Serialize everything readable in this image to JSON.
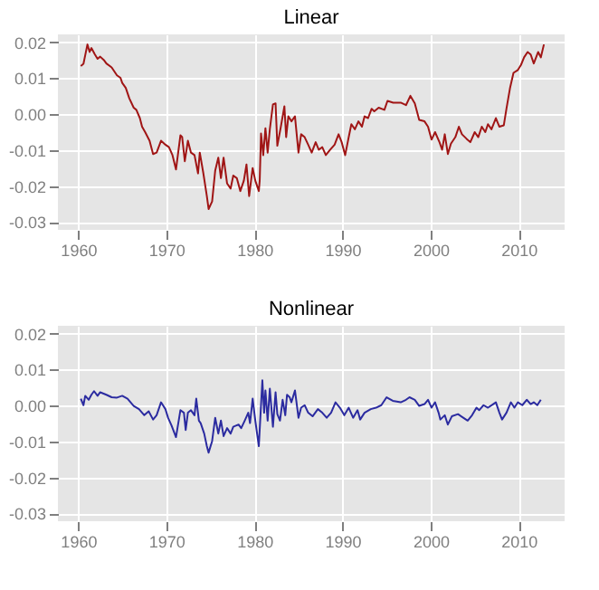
{
  "chart_data": [
    {
      "type": "line",
      "title": "Linear",
      "grid": true,
      "xlim": [
        1957.7,
        2015.2
      ],
      "xticks": [
        1960,
        1970,
        1980,
        1990,
        2000,
        2010
      ],
      "ylim": [
        -0.0322,
        0.0222
      ],
      "yticks": [
        {
          "value": -0.03,
          "label": "-0.03"
        },
        {
          "value": -0.02,
          "label": "-0.02"
        },
        {
          "value": -0.01,
          "label": "-0.01"
        },
        {
          "value": 0,
          "label": "0.00"
        },
        {
          "value": 0.01,
          "label": "0.01"
        },
        {
          "value": 0.02,
          "label": "0.02"
        }
      ],
      "series": [
        {
          "color": "#a01515",
          "x": [
            1960.3,
            1960.6,
            1961.05,
            1961.3,
            1961.5,
            1961.9,
            1962.2,
            1962.5,
            1962.9,
            1963.2,
            1963.8,
            1964.4,
            1964.8,
            1965,
            1965.4,
            1965.8,
            1966.3,
            1966.6,
            1967,
            1967.25,
            1967.6,
            1968.1,
            1968.5,
            1968.9,
            1969.4,
            1969.9,
            1970.3,
            1970.7,
            1971.1,
            1971.6,
            1971.8,
            1972.1,
            1972.45,
            1972.8,
            1973.2,
            1973.6,
            1973.8,
            1974.2,
            1974.6,
            1974.8,
            1975.2,
            1975.55,
            1975.9,
            1976.2,
            1976.5,
            1976.9,
            1977.3,
            1977.6,
            1978,
            1978.4,
            1978.8,
            1979.1,
            1979.4,
            1979.8,
            1980.1,
            1980.5,
            1980.6,
            1980.75,
            1981,
            1981.25,
            1981.5,
            1981.75,
            1982.1,
            1982.4,
            1982.6,
            1983,
            1983.4,
            1983.6,
            1983.85,
            1984.2,
            1984.6,
            1985,
            1985.3,
            1985.7,
            1986.1,
            1986.5,
            1986.95,
            1987.3,
            1987.7,
            1988.1,
            1988.6,
            1989.1,
            1989.55,
            1989.9,
            1990.3,
            1990.7,
            1991,
            1991.4,
            1991.8,
            1992.2,
            1992.5,
            1992.9,
            1993.3,
            1993.6,
            1994.1,
            1994.75,
            1995.1,
            1995.75,
            1996.6,
            1997.2,
            1997.7,
            1998.2,
            1998.7,
            1999.3,
            1999.7,
            2000.1,
            2000.5,
            2001,
            2001.3,
            2001.6,
            2001.95,
            2002.3,
            2002.8,
            2003.2,
            2003.55,
            2004.05,
            2004.5,
            2005,
            2005.4,
            2005.8,
            2006.2,
            2006.5,
            2006.9,
            2007.4,
            2007.8,
            2008.3,
            2008.6,
            2009,
            2009.4,
            2009.9,
            2010.25,
            2010.6,
            2011,
            2011.35,
            2011.7,
            2012.2,
            2012.5,
            2012.85
          ],
          "values": [
            0.0134,
            0.014,
            0.0194,
            0.0173,
            0.0184,
            0.0166,
            0.0154,
            0.016,
            0.0151,
            0.0141,
            0.013,
            0.0108,
            0.0101,
            0.0087,
            0.0073,
            0.0044,
            0.0018,
            0.0012,
            -0.0011,
            -0.0035,
            -0.005,
            -0.0074,
            -0.0111,
            -0.0107,
            -0.0074,
            -0.0085,
            -0.0092,
            -0.0114,
            -0.0154,
            -0.0059,
            -0.0064,
            -0.0131,
            -0.0074,
            -0.0107,
            -0.0114,
            -0.0165,
            -0.0107,
            -0.0164,
            -0.0228,
            -0.0264,
            -0.0243,
            -0.0157,
            -0.0121,
            -0.0178,
            -0.0121,
            -0.0193,
            -0.0207,
            -0.0171,
            -0.0178,
            -0.0214,
            -0.0185,
            -0.014,
            -0.0228,
            -0.015,
            -0.0185,
            -0.0214,
            -0.0185,
            -0.0054,
            -0.0114,
            -0.0039,
            -0.0107,
            -0.0042,
            0.0027,
            0.003,
            -0.0088,
            -0.0035,
            0.0022,
            -0.0064,
            -0.0006,
            -0.002,
            -0.0006,
            -0.0107,
            -0.0056,
            -0.0064,
            -0.0085,
            -0.0107,
            -0.0078,
            -0.0099,
            -0.0092,
            -0.0114,
            -0.0099,
            -0.0085,
            -0.0056,
            -0.0078,
            -0.0114,
            -0.0064,
            -0.0028,
            -0.0042,
            -0.002,
            -0.0035,
            -0.0006,
            -0.0011,
            0.0015,
            0.0008,
            0.0018,
            0.0012,
            0.0037,
            0.0032,
            0.0032,
            0.0025,
            0.0051,
            0.003,
            -0.0016,
            -0.002,
            -0.0035,
            -0.0071,
            -0.005,
            -0.0078,
            -0.0099,
            -0.0056,
            -0.0111,
            -0.0082,
            -0.0064,
            -0.0035,
            -0.0056,
            -0.0068,
            -0.0078,
            -0.005,
            -0.0064,
            -0.0035,
            -0.005,
            -0.0028,
            -0.0042,
            -0.0011,
            -0.0035,
            -0.0031,
            0.0015,
            0.0072,
            0.0115,
            0.0123,
            0.0137,
            0.0158,
            0.0173,
            0.0166,
            0.0141,
            0.0173,
            0.0158,
            0.0194
          ]
        }
      ]
    },
    {
      "type": "line",
      "title": "Nonlinear",
      "grid": true,
      "xlim": [
        1957.7,
        2015.2
      ],
      "xticks": [
        1960,
        1970,
        1980,
        1990,
        2000,
        2010
      ],
      "ylim": [
        -0.0322,
        0.0222
      ],
      "yticks": [
        {
          "value": -0.03,
          "label": "-0.03"
        },
        {
          "value": -0.02,
          "label": "-0.02"
        },
        {
          "value": -0.01,
          "label": "-0.01"
        },
        {
          "value": 0,
          "label": "0.00"
        },
        {
          "value": 0.01,
          "label": "0.01"
        },
        {
          "value": 0.02,
          "label": "0.02"
        }
      ],
      "series": [
        {
          "color": "#2b2ba0",
          "x": [
            1960.3,
            1960.6,
            1960.8,
            1961.2,
            1961.5,
            1961.8,
            1962.2,
            1962.5,
            1963.2,
            1963.8,
            1964.4,
            1965,
            1965.6,
            1966.3,
            1966.9,
            1967.5,
            1968,
            1968.5,
            1968.9,
            1969.4,
            1969.9,
            1970.2,
            1970.6,
            1971.1,
            1971.6,
            1972,
            1972.2,
            1972.45,
            1972.8,
            1973.2,
            1973.4,
            1973.7,
            1973.9,
            1974.3,
            1974.6,
            1974.8,
            1975.2,
            1975.55,
            1975.9,
            1976.2,
            1976.5,
            1976.9,
            1977.3,
            1977.6,
            1978.2,
            1978.5,
            1978.9,
            1979.3,
            1979.5,
            1979.8,
            1980.1,
            1980.5,
            1980.9,
            1981.1,
            1981.25,
            1981.5,
            1981.75,
            1982.1,
            1982.4,
            1982.6,
            1982.9,
            1983.2,
            1983.5,
            1983.7,
            1984,
            1984.2,
            1984.6,
            1985,
            1985.3,
            1985.7,
            1986.1,
            1986.6,
            1987.2,
            1987.7,
            1988.2,
            1988.7,
            1989.2,
            1989.7,
            1990.2,
            1990.7,
            1991.2,
            1991.7,
            1992,
            1992.5,
            1993.2,
            1993.8,
            1994.4,
            1995,
            1995.7,
            1996.6,
            1997.2,
            1997.6,
            1998.2,
            1998.7,
            1999.3,
            1999.7,
            2000.1,
            2000.5,
            2000.9,
            2001.1,
            2001.6,
            2001.95,
            2002.4,
            2003.1,
            2003.7,
            2004.2,
            2004.7,
            2005.2,
            2005.5,
            2006,
            2006.5,
            2007.1,
            2007.4,
            2007.8,
            2008.1,
            2008.6,
            2009.1,
            2009.5,
            2009.9,
            2010.4,
            2010.9,
            2011.35,
            2011.7,
            2012.1,
            2012.5
          ],
          "values": [
            0.0019,
            0.0001,
            0.0027,
            0.0016,
            0.003,
            0.004,
            0.0027,
            0.0037,
            0.003,
            0.0023,
            0.0022,
            0.0027,
            0.0019,
            -0.0001,
            -0.001,
            -0.0027,
            -0.0016,
            -0.0039,
            -0.0027,
            0.0009,
            -0.001,
            -0.0034,
            -0.0056,
            -0.0088,
            -0.0013,
            -0.002,
            -0.0068,
            -0.002,
            -0.0013,
            -0.0027,
            0.0019,
            -0.0042,
            -0.0049,
            -0.0078,
            -0.0113,
            -0.0131,
            -0.0099,
            -0.0034,
            -0.0078,
            -0.0042,
            -0.0085,
            -0.0063,
            -0.0078,
            -0.0059,
            -0.0053,
            -0.0063,
            -0.0042,
            -0.002,
            -0.0049,
            0.0019,
            -0.0042,
            -0.0113,
            0.007,
            -0.002,
            0.0042,
            -0.0042,
            0.0047,
            -0.0059,
            0.0037,
            -0.0024,
            -0.0042,
            0.0016,
            -0.0027,
            0.003,
            0.0023,
            0.0009,
            0.0042,
            -0.0034,
            -0.0006,
            0.0001,
            -0.002,
            -0.003,
            -0.001,
            -0.002,
            -0.0034,
            -0.002,
            0.0009,
            -0.0006,
            -0.0027,
            -0.0006,
            -0.0034,
            -0.0013,
            -0.0039,
            -0.002,
            -0.001,
            -0.0006,
            0.0001,
            0.0023,
            0.0013,
            0.0009,
            0.0016,
            0.0023,
            0.0016,
            -0.0001,
            0.0004,
            0.0016,
            -0.0006,
            0.0009,
            -0.002,
            -0.0039,
            -0.0027,
            -0.0053,
            -0.003,
            -0.0024,
            -0.0034,
            -0.0042,
            -0.0027,
            -0.0006,
            -0.0013,
            0.0001,
            -0.0006,
            0.0004,
            0.0009,
            -0.002,
            -0.0039,
            -0.002,
            0.0009,
            -0.0006,
            0.0009,
            0.0001,
            0.0016,
            0.0004,
            0.0009,
            0.0001,
            0.0016
          ]
        }
      ]
    }
  ]
}
